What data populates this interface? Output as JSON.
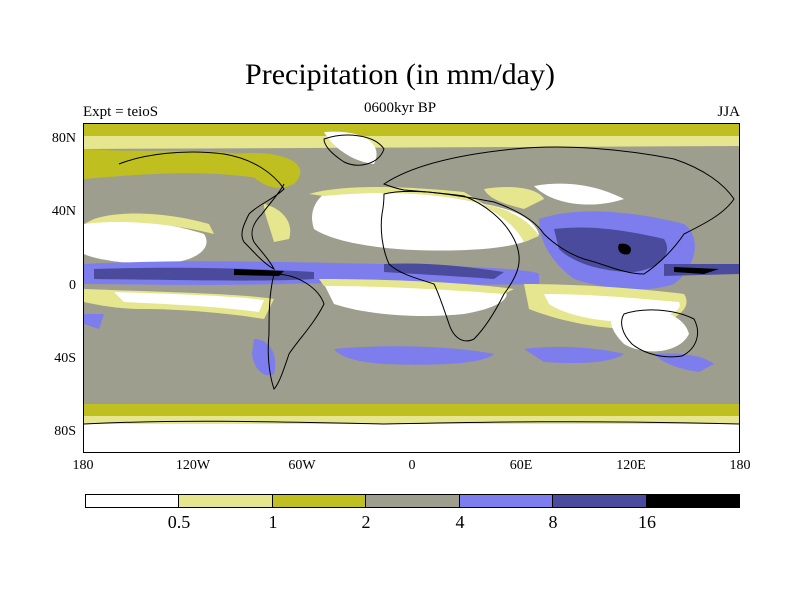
{
  "title": "Precipitation (in mm/day)",
  "subtitle_left": "Expt = teioS",
  "subtitle_center": "0600kyr BP",
  "subtitle_right": "JJA",
  "lat_labels": [
    "80N",
    "40N",
    "0",
    "40S",
    "80S"
  ],
  "lon_labels": [
    "180",
    "120W",
    "60W",
    "0",
    "60E",
    "120E",
    "180"
  ],
  "colorbar": {
    "colors": [
      "#ffffff",
      "#e6e68e",
      "#bfbf1f",
      "#9e9e8e",
      "#7d7ded",
      "#4b4b9e",
      "#000000"
    ],
    "labels": [
      "0.5",
      "1",
      "2",
      "4",
      "8",
      "16"
    ]
  },
  "colors": {
    "white": "#ffffff",
    "light_yellow": "#e6e68e",
    "olive": "#bfbf1f",
    "gray": "#9e9e8e",
    "light_blue": "#7d7ded",
    "dark_blue": "#4b4b9e",
    "black": "#000000"
  }
}
